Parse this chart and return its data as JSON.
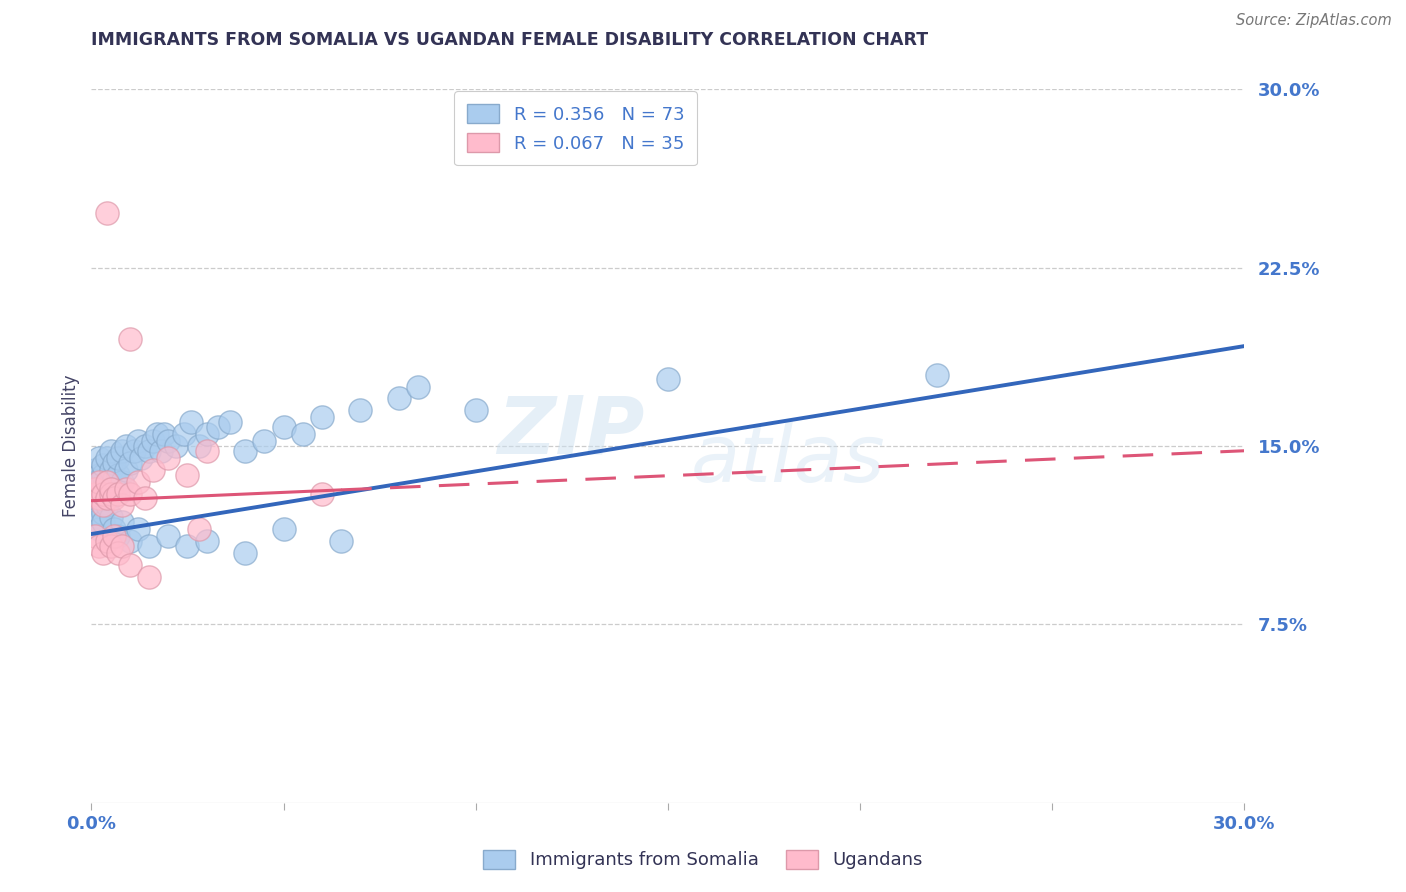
{
  "title": "IMMIGRANTS FROM SOMALIA VS UGANDAN FEMALE DISABILITY CORRELATION CHART",
  "source": "Source: ZipAtlas.com",
  "ylabel": "Female Disability",
  "xmin": 0.0,
  "xmax": 0.3,
  "ymin": 0.0,
  "ymax": 0.3,
  "yticks_right": [
    0.0,
    0.075,
    0.15,
    0.225,
    0.3
  ],
  "ytick_labels_right": [
    "",
    "7.5%",
    "15.0%",
    "22.5%",
    "30.0%"
  ],
  "watermark": "ZIPatlas",
  "legend_entries": [
    {
      "label": "R = 0.356   N = 73",
      "color": "#6699cc"
    },
    {
      "label": "R = 0.067   N = 35",
      "color": "#ff99aa"
    }
  ],
  "legend_bottom": [
    {
      "label": "Immigrants from Somalia",
      "color": "#aabbdd"
    },
    {
      "label": "Ugandans",
      "color": "#ffaabb"
    }
  ],
  "blue_scatter_x": [
    0.001,
    0.001,
    0.001,
    0.002,
    0.002,
    0.002,
    0.002,
    0.003,
    0.003,
    0.003,
    0.003,
    0.004,
    0.004,
    0.004,
    0.005,
    0.005,
    0.005,
    0.006,
    0.006,
    0.007,
    0.007,
    0.008,
    0.008,
    0.009,
    0.009,
    0.01,
    0.011,
    0.012,
    0.013,
    0.014,
    0.015,
    0.016,
    0.017,
    0.018,
    0.019,
    0.02,
    0.022,
    0.024,
    0.026,
    0.028,
    0.03,
    0.033,
    0.036,
    0.04,
    0.045,
    0.05,
    0.055,
    0.06,
    0.07,
    0.08,
    0.001,
    0.002,
    0.002,
    0.003,
    0.003,
    0.004,
    0.005,
    0.006,
    0.007,
    0.008,
    0.01,
    0.012,
    0.015,
    0.02,
    0.025,
    0.03,
    0.04,
    0.05,
    0.065,
    0.085,
    0.1,
    0.15,
    0.22
  ],
  "blue_scatter_y": [
    0.13,
    0.135,
    0.14,
    0.125,
    0.13,
    0.138,
    0.145,
    0.128,
    0.132,
    0.138,
    0.142,
    0.13,
    0.135,
    0.145,
    0.132,
    0.14,
    0.148,
    0.136,
    0.143,
    0.138,
    0.145,
    0.135,
    0.148,
    0.14,
    0.15,
    0.143,
    0.148,
    0.152,
    0.145,
    0.15,
    0.148,
    0.152,
    0.155,
    0.148,
    0.155,
    0.152,
    0.15,
    0.155,
    0.16,
    0.15,
    0.155,
    0.158,
    0.16,
    0.148,
    0.152,
    0.158,
    0.155,
    0.162,
    0.165,
    0.17,
    0.118,
    0.12,
    0.115,
    0.122,
    0.118,
    0.125,
    0.12,
    0.115,
    0.112,
    0.118,
    0.11,
    0.115,
    0.108,
    0.112,
    0.108,
    0.11,
    0.105,
    0.115,
    0.11,
    0.175,
    0.165,
    0.178,
    0.18
  ],
  "pink_scatter_x": [
    0.001,
    0.001,
    0.002,
    0.002,
    0.003,
    0.003,
    0.004,
    0.004,
    0.005,
    0.005,
    0.006,
    0.007,
    0.008,
    0.009,
    0.01,
    0.012,
    0.014,
    0.016,
    0.02,
    0.025,
    0.001,
    0.002,
    0.003,
    0.004,
    0.005,
    0.006,
    0.007,
    0.008,
    0.01,
    0.015,
    0.004,
    0.01,
    0.028,
    0.03,
    0.06
  ],
  "pink_scatter_y": [
    0.13,
    0.132,
    0.128,
    0.135,
    0.125,
    0.13,
    0.128,
    0.135,
    0.13,
    0.132,
    0.128,
    0.13,
    0.125,
    0.132,
    0.13,
    0.135,
    0.128,
    0.14,
    0.145,
    0.138,
    0.112,
    0.108,
    0.105,
    0.11,
    0.108,
    0.112,
    0.105,
    0.108,
    0.1,
    0.095,
    0.248,
    0.195,
    0.115,
    0.148,
    0.13
  ],
  "blue_line_x": [
    0.0,
    0.3
  ],
  "blue_line_y_start": 0.113,
  "blue_line_y_end": 0.192,
  "pink_line_x": [
    0.0,
    0.3
  ],
  "pink_line_y_start": 0.127,
  "pink_line_y_end": 0.148,
  "title_color": "#333355",
  "blue_color": "#3366bb",
  "pink_color": "#dd5577",
  "blue_scatter_color": "#aaccee",
  "pink_scatter_color": "#ffbbcc",
  "grid_color": "#cccccc",
  "axis_color": "#4477cc",
  "background_color": "#ffffff"
}
